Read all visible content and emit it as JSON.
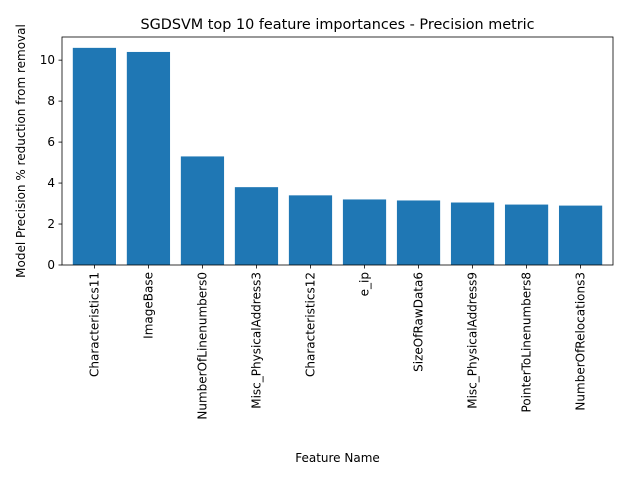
{
  "chart_data": {
    "type": "bar",
    "title": "SGDSVM top 10 feature importances - Precision metric",
    "xlabel": "Feature Name",
    "ylabel": "Model Precision % reduction from removal",
    "categories": [
      "Characteristics11",
      "ImageBase",
      "NumberOfLinenumbers0",
      "Misc_PhysicalAddress3",
      "Characteristics12",
      "e_ip",
      "SizeOfRawData6",
      "Misc_PhysicalAddress9",
      "PointerToLinenumbers8",
      "NumberOfRelocations3"
    ],
    "values": [
      10.6,
      10.4,
      5.3,
      3.8,
      3.4,
      3.2,
      3.15,
      3.05,
      2.95,
      2.9
    ],
    "ylim": [
      0,
      11.13
    ],
    "yticks": [
      0,
      2,
      4,
      6,
      8,
      10
    ],
    "grid": false,
    "colors": {
      "bar": "#1f77b4",
      "axis": "#000000",
      "background": "#ffffff"
    }
  }
}
